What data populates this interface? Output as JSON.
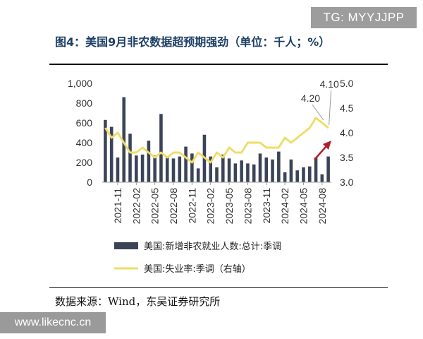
{
  "header": {
    "watermark": "TG: MYYJJPP"
  },
  "footer": {
    "source": "数据来源：Wind，东吴证券研究所",
    "site_watermark": "www.likecnc.cn"
  },
  "colors": {
    "bar": "#3b4457",
    "line": "#f0dc68",
    "arrow": "#b0202a",
    "rule": "#111111",
    "ann_line": "#9a9a9a"
  },
  "chart_data": {
    "type": "bar+line",
    "title": "图4：美国9月非农数据超预期强劲（单位：千人；%）",
    "x": [
      "2021-09",
      "2021-10",
      "2021-11",
      "2021-12",
      "2022-01",
      "2022-02",
      "2022-03",
      "2022-04",
      "2022-05",
      "2022-06",
      "2022-07",
      "2022-08",
      "2022-09",
      "2022-10",
      "2022-11",
      "2022-12",
      "2023-01",
      "2023-02",
      "2023-03",
      "2023-04",
      "2023-05",
      "2023-06",
      "2023-07",
      "2023-08",
      "2023-09",
      "2023-10",
      "2023-11",
      "2023-12",
      "2024-01",
      "2024-02",
      "2024-03",
      "2024-04",
      "2024-05",
      "2024-06",
      "2024-07",
      "2024-08",
      "2024-09"
    ],
    "tick_labels": [
      "2021-11",
      "2022-02",
      "2022-05",
      "2022-08",
      "2022-11",
      "2023-02",
      "2023-05",
      "2023-08",
      "2023-11",
      "2024-02",
      "2024-05",
      "2024-08"
    ],
    "tick_indices": [
      2,
      5,
      8,
      11,
      14,
      17,
      20,
      23,
      26,
      29,
      32,
      35
    ],
    "series": [
      {
        "name": "美国:新增非农就业人数:总计:季调",
        "type": "bar",
        "axis": "left",
        "values": [
          630,
          560,
          250,
          860,
          490,
          270,
          280,
          420,
          270,
          690,
          250,
          240,
          260,
          360,
          290,
          140,
          480,
          260,
          150,
          280,
          240,
          190,
          220,
          190,
          180,
          290,
          250,
          230,
          310,
          100,
          230,
          120,
          150,
          160,
          250,
          80,
          260
        ]
      },
      {
        "name": "美国:失业率:季调（右轴）",
        "type": "line",
        "axis": "right",
        "values": [
          4.1,
          3.9,
          4.0,
          3.8,
          3.6,
          3.6,
          3.7,
          3.6,
          3.5,
          3.6,
          3.5,
          3.6,
          3.6,
          3.5,
          3.4,
          3.6,
          3.5,
          3.4,
          3.6,
          3.5,
          3.7,
          3.6,
          3.6,
          3.8,
          3.8,
          3.8,
          3.7,
          3.7,
          3.7,
          3.9,
          3.8,
          3.9,
          4.0,
          4.1,
          4.3,
          4.2,
          4.1
        ]
      }
    ],
    "left_axis": {
      "range": [
        0,
        1000
      ],
      "ticks": [
        0,
        200,
        400,
        600,
        800,
        1000
      ],
      "tick_labels": [
        "0",
        "200",
        "400",
        "600",
        "800",
        "1,000"
      ]
    },
    "right_axis": {
      "range": [
        3.0,
        5.0
      ],
      "ticks": [
        3.0,
        3.5,
        4.0,
        4.5,
        5.0
      ],
      "tick_labels": [
        "3.0",
        "3.5",
        "4.0",
        "4.5",
        "5.0"
      ]
    },
    "annotations": [
      {
        "text": "4.20",
        "series_index": 1,
        "point_index": 35
      },
      {
        "text": "4.10",
        "series_index": 1,
        "point_index": 36
      }
    ],
    "legend": {
      "position": "bottom"
    }
  }
}
